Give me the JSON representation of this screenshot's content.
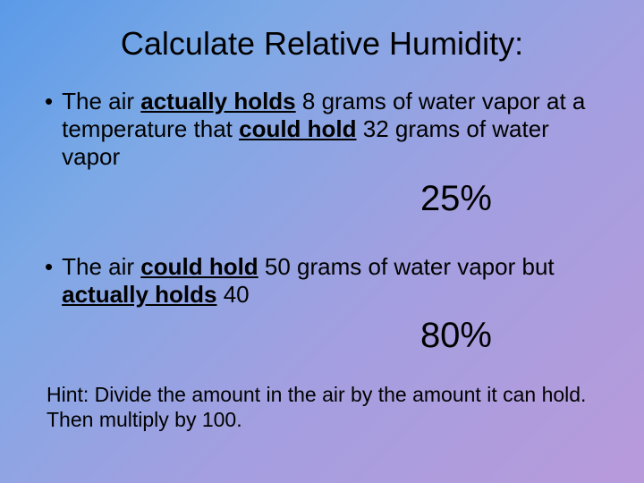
{
  "background": {
    "gradient_start": "#5b9ae8",
    "gradient_mid1": "#7da9e6",
    "gradient_mid2": "#a39fe0",
    "gradient_end": "#b89adb",
    "angle_deg": 135
  },
  "text_color": "#000000",
  "title": "Calculate Relative Humidity:",
  "title_fontsize": 36,
  "bullet_fontsize": 26,
  "answer_fontsize": 40,
  "hint_fontsize": 23,
  "bullets": [
    {
      "pre": "The air ",
      "emph1": "actually holds",
      "mid": " 8 grams of water vapor at a temperature that ",
      "emph2": "could hold",
      "post": " 32 grams of water vapor",
      "answer": "25%"
    },
    {
      "pre": "The air ",
      "emph1": "could hold",
      "mid": " 50 grams of water vapor but ",
      "emph2": "actually holds",
      "post": " 40",
      "answer": "80%"
    }
  ],
  "hint": "Hint: Divide the amount in the air by the amount it can hold.  Then multiply by 100."
}
